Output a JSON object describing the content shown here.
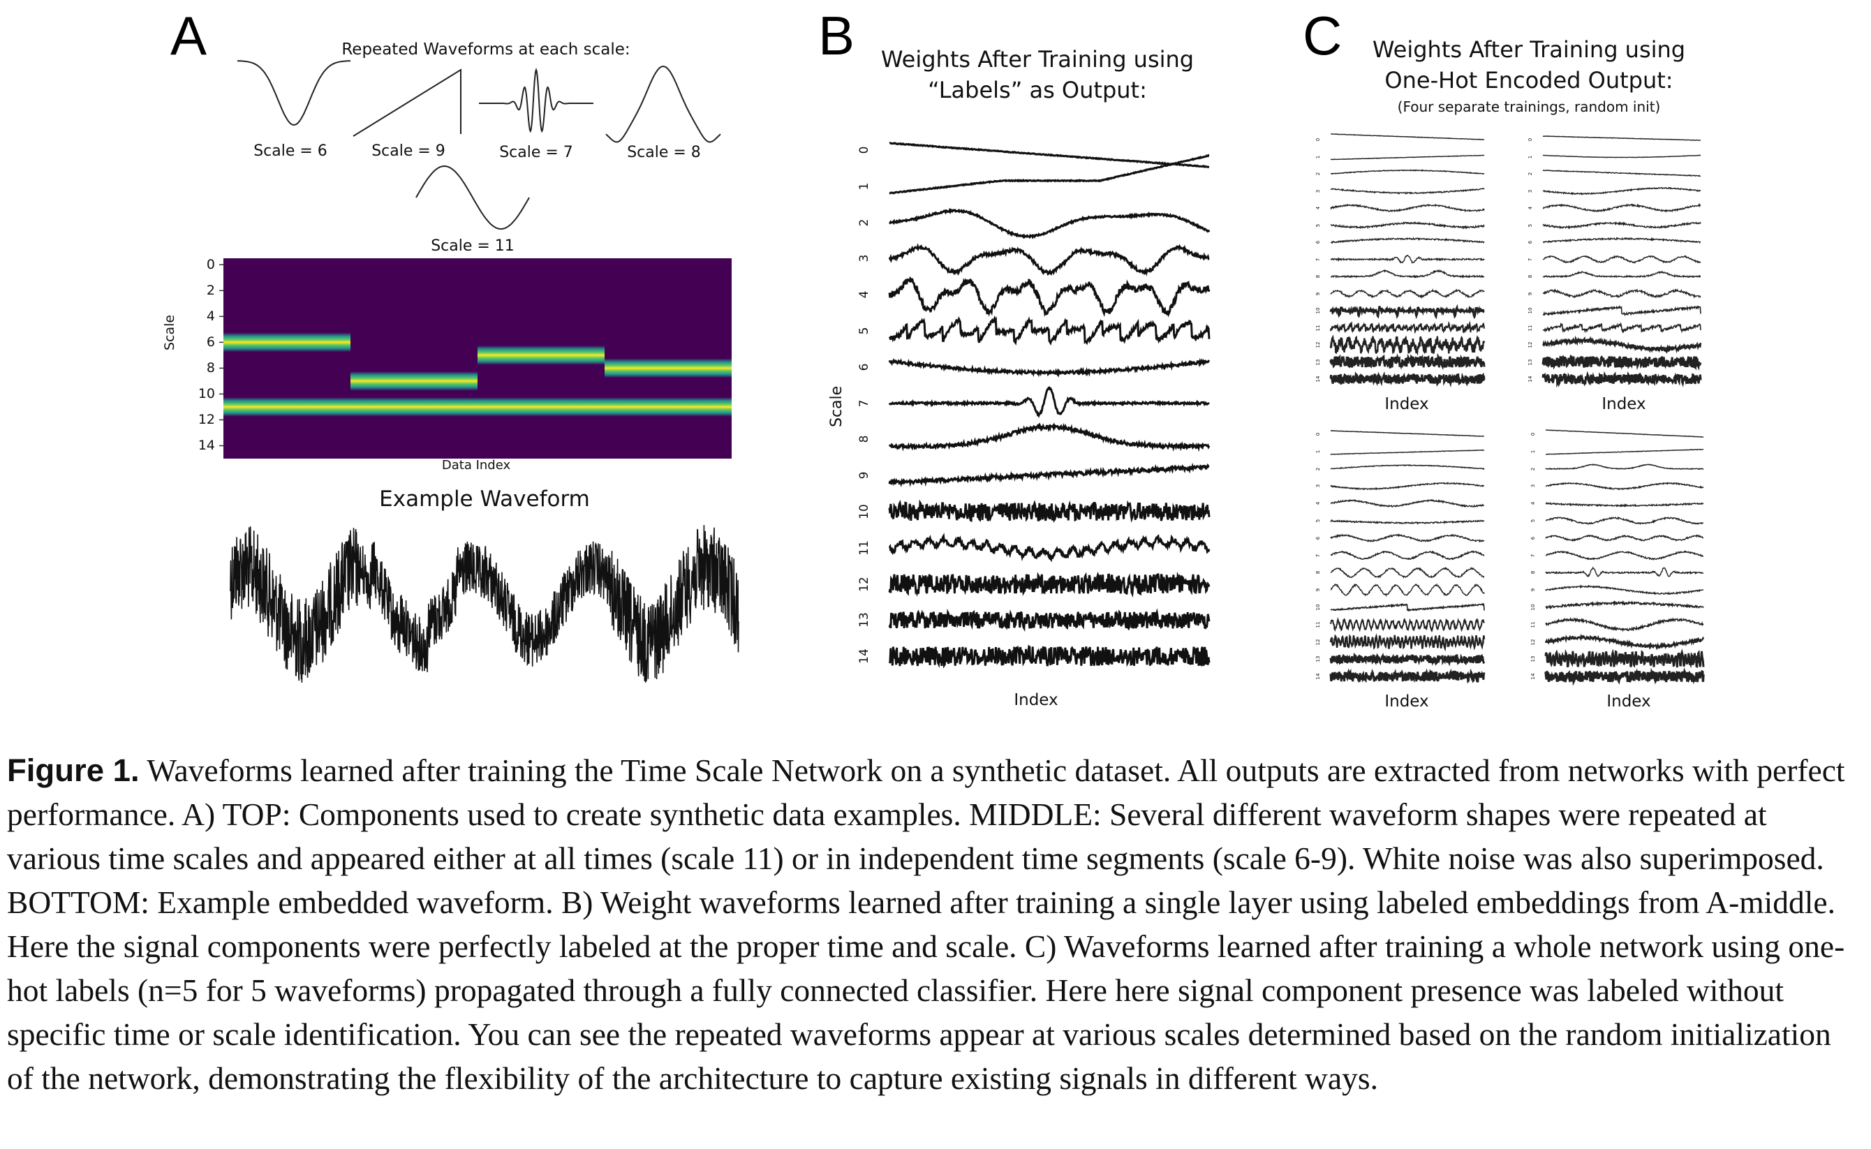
{
  "panel_a": {
    "letter": "A",
    "components_title": "Repeated Waveforms at each scale:",
    "components": [
      {
        "shape": "gaussian-dip-icon",
        "label": "Scale = 6"
      },
      {
        "shape": "sawtooth-icon",
        "label": "Scale = 9"
      },
      {
        "shape": "wavelet-burst-icon",
        "label": "Scale = 7"
      },
      {
        "shape": "gaussian-peak-icon",
        "label": "Scale = 8"
      },
      {
        "shape": "sine-period-icon",
        "label": "Scale = 11"
      }
    ],
    "heatmap": {
      "ylabel": "Scale",
      "xlabel": "Data Index",
      "yticks": [
        "0",
        "2",
        "4",
        "6",
        "8",
        "10",
        "12",
        "14"
      ],
      "background_color": "#440154",
      "band_colors": [
        "#440154",
        "#21918c",
        "#5ec962",
        "#fde725"
      ],
      "segments": [
        {
          "scale": 6,
          "start": 0.0,
          "end": 0.25
        },
        {
          "scale": 9,
          "start": 0.25,
          "end": 0.5
        },
        {
          "scale": 7,
          "start": 0.5,
          "end": 0.75
        },
        {
          "scale": 8,
          "start": 0.75,
          "end": 1.0
        },
        {
          "scale": 11,
          "start": 0.0,
          "end": 1.0
        }
      ]
    },
    "example_title": "Example Waveform"
  },
  "panel_b": {
    "letter": "B",
    "title_line1": "Weights After Training using",
    "title_line2": "“Labels” as Output:",
    "ylabel": "Scale",
    "xlabel": "Index",
    "rows": [
      "0",
      "1",
      "2",
      "3",
      "4",
      "5",
      "6",
      "7",
      "8",
      "9",
      "10",
      "11",
      "12",
      "13",
      "14"
    ]
  },
  "panel_c": {
    "letter": "C",
    "title_line1": "Weights After Training using",
    "title_line2": "One-Hot Encoded Output:",
    "subtitle": "(Four separate trainings, random init)",
    "xlabel": "Index",
    "rows": [
      "0",
      "1",
      "2",
      "3",
      "4",
      "5",
      "6",
      "7",
      "8",
      "9",
      "10",
      "11",
      "12",
      "13",
      "14"
    ]
  },
  "caption": {
    "lead": "Figure 1.",
    "text": "Waveforms learned after training the Time Scale Network on a synthetic dataset. All outputs are extracted from networks with perfect performance. A) TOP: Components used to create synthetic data examples. MIDDLE: Several different waveform shapes were repeated at various time scales and appeared either at all times (scale 11) or in independent time segments (scale 6-9). White noise was also superimposed. BOTTOM: Example embedded waveform. B) Weight waveforms learned after training a single layer using labeled embeddings from A-middle. Here the signal components were perfectly labeled at the proper time and scale. C) Waveforms learned after training a whole network using one-hot labels (n=5 for 5 waveforms) propagated through a fully connected classifier. Here here signal component presence was labeled without specific time or scale identification. You can see the repeated waveforms appear at various scales determined based on the random initialization of the network, demonstrating the flexibility of the architecture to capture existing signals in different ways."
  }
}
